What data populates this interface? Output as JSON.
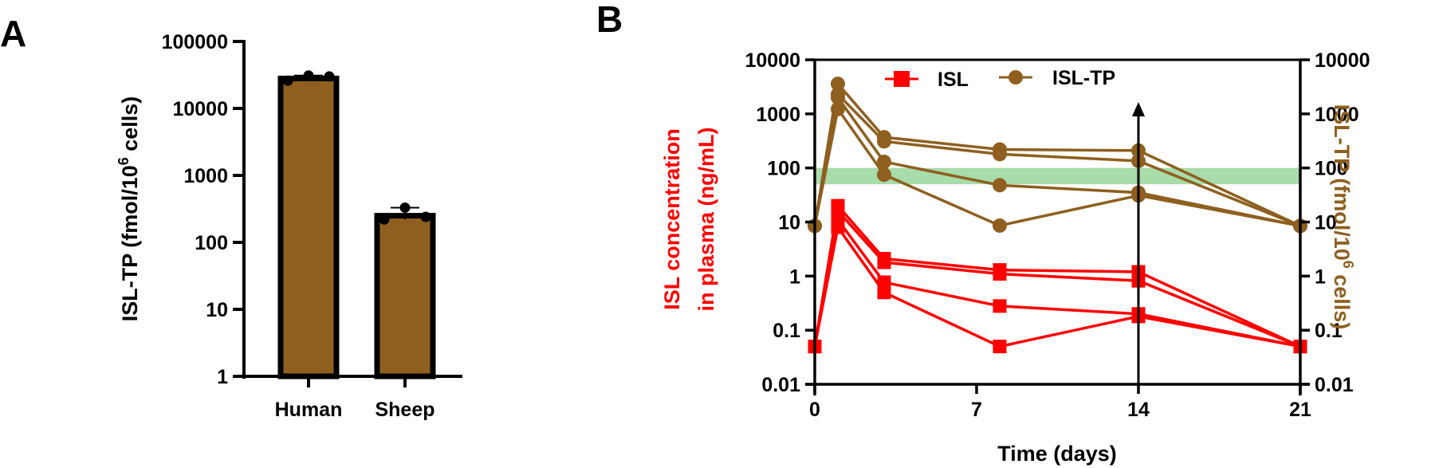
{
  "colors": {
    "isl": "#ff0000",
    "isl_tp": "#8e5f1f",
    "target_band": "#a8dcaa",
    "axis": "#000000"
  },
  "chart_data": [
    {
      "panel": "A",
      "type": "bar",
      "yscale": "log",
      "title": "",
      "xlabel": "",
      "ylabel": "ISL-TP (fmol/10^6 cells)",
      "ylabel_parts": {
        "prefix": "ISL-TP (fmol/10",
        "sup": "6",
        "suffix": " cells)"
      },
      "ylim": [
        1,
        100000
      ],
      "yticks": [
        1,
        10,
        100,
        1000,
        10000,
        100000
      ],
      "ytick_labels": [
        "1",
        "10",
        "100",
        "1000",
        "10000",
        "100000"
      ],
      "categories": [
        "Human",
        "Sheep"
      ],
      "values": [
        28000,
        250
      ],
      "points": [
        [
          26000,
          31000,
          30000
        ],
        [
          220,
          330,
          240
        ]
      ],
      "bar_color": "#8e5f1f"
    },
    {
      "panel": "B",
      "type": "line",
      "yscale": "log",
      "xlabel": "Time (days)",
      "ylabel_left_lines": [
        "ISL concentration",
        "in plasma (ng/mL)"
      ],
      "ylabel_right_parts": {
        "prefix": "ISL-TP (fmol/10",
        "sup": "6",
        "suffix": " cells)"
      },
      "xlim": [
        0,
        21
      ],
      "xticks": [
        0,
        7,
        14,
        21
      ],
      "xtick_labels": [
        "0",
        "7",
        "14",
        "21"
      ],
      "ylim": [
        0.01,
        10000
      ],
      "yticks": [
        0.01,
        0.1,
        1,
        10,
        100,
        1000,
        10000
      ],
      "ytick_labels": [
        "0.01",
        "0.1",
        "1",
        "10",
        "100",
        "1000",
        "10000"
      ],
      "legend": [
        {
          "label": "ISL",
          "marker": "square",
          "color": "#ff0000"
        },
        {
          "label": "ISL-TP",
          "marker": "circle",
          "color": "#8e5f1f"
        }
      ],
      "legend_position": "top-center",
      "target_band": {
        "low": 50,
        "high": 100,
        "color": "#a8dcaa"
      },
      "arrow_at_day": 14,
      "x": [
        0,
        1,
        3,
        8,
        14,
        21
      ],
      "series": [
        {
          "name": "ISL",
          "subject": 1,
          "values": [
            0.05,
            20,
            2.1,
            1.3,
            1.2,
            0.05
          ]
        },
        {
          "name": "ISL",
          "subject": 2,
          "values": [
            0.05,
            16,
            1.8,
            1.1,
            0.82,
            0.05
          ]
        },
        {
          "name": "ISL",
          "subject": 3,
          "values": [
            0.05,
            11,
            0.77,
            0.28,
            0.2,
            0.05
          ]
        },
        {
          "name": "ISL",
          "subject": 4,
          "values": [
            0.05,
            8,
            0.5,
            0.05,
            0.18,
            0.05
          ]
        },
        {
          "name": "ISL-TP",
          "subject": 1,
          "values": [
            8.5,
            3600,
            370,
            220,
            210,
            8.5
          ]
        },
        {
          "name": "ISL-TP",
          "subject": 2,
          "values": [
            8.5,
            2300,
            310,
            180,
            135,
            8.5
          ]
        },
        {
          "name": "ISL-TP",
          "subject": 3,
          "values": [
            8.5,
            2000,
            130,
            48,
            35,
            8.5
          ]
        },
        {
          "name": "ISL-TP",
          "subject": 4,
          "values": [
            8.5,
            1230,
            75,
            8.6,
            31,
            8.5
          ]
        }
      ]
    }
  ],
  "panel_labels": [
    "A",
    "B"
  ]
}
